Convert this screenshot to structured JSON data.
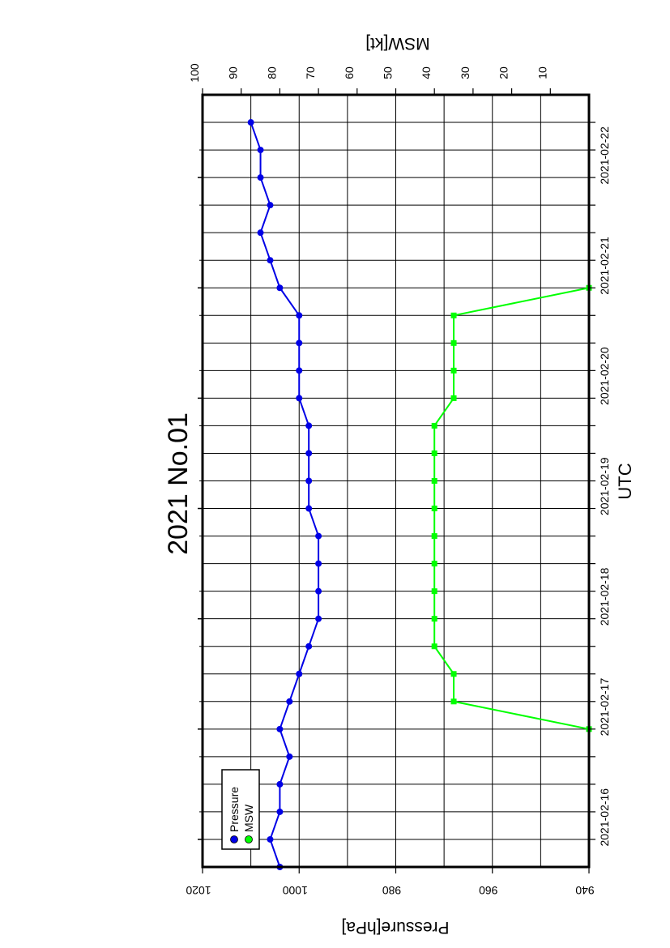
{
  "chart_data": {
    "type": "line",
    "title": "2021 No.01",
    "xlabel": "UTC",
    "ylabel_left": "Pressure[hPa]",
    "ylabel_right": "MSW[kt]",
    "x_start": "2021-02-15 18:00",
    "x_step_hours": 6,
    "x_ticks_labeled": [
      "2021-02-16",
      "2021-02-17",
      "2021-02-18",
      "2021-02-19",
      "2021-02-20",
      "2021-02-21",
      "2021-02-22"
    ],
    "ylim_left": [
      940,
      1020
    ],
    "yticks_left": [
      "940",
      "960",
      "980",
      "1000",
      "1020"
    ],
    "ylim_right": [
      0,
      100
    ],
    "yticks_right": [
      "10",
      "20",
      "30",
      "40",
      "50",
      "60",
      "70",
      "80",
      "90",
      "100"
    ],
    "grid": true,
    "orientation": "rotated 90° counter-clockwise",
    "legend": {
      "position": "top-left (as printed)",
      "entries": [
        "Pressure",
        "MSW"
      ]
    },
    "series": [
      {
        "name": "Pressure",
        "axis": "left",
        "color": "#0000e6",
        "times": [
          "2021-02-15 18:00",
          "2021-02-16 00:00",
          "2021-02-16 06:00",
          "2021-02-16 12:00",
          "2021-02-16 18:00",
          "2021-02-17 00:00",
          "2021-02-17 06:00",
          "2021-02-17 12:00",
          "2021-02-17 18:00",
          "2021-02-18 00:00",
          "2021-02-18 06:00",
          "2021-02-18 12:00",
          "2021-02-18 18:00",
          "2021-02-19 00:00",
          "2021-02-19 06:00",
          "2021-02-19 12:00",
          "2021-02-19 18:00",
          "2021-02-20 00:00",
          "2021-02-20 06:00",
          "2021-02-20 12:00",
          "2021-02-20 18:00",
          "2021-02-21 00:00",
          "2021-02-21 06:00",
          "2021-02-21 12:00",
          "2021-02-21 18:00",
          "2021-02-22 00:00",
          "2021-02-22 06:00",
          "2021-02-22 12:00"
        ],
        "values": [
          1004,
          1006,
          1004,
          1004,
          1002,
          1004,
          1002,
          1000,
          998,
          996,
          996,
          996,
          996,
          998,
          998,
          998,
          998,
          1000,
          1000,
          1000,
          1000,
          1004,
          1006,
          1008,
          1006,
          1008,
          1008,
          1010
        ]
      },
      {
        "name": "MSW",
        "axis": "right",
        "color": "#00ff00",
        "times": [
          "2021-02-17 00:00",
          "2021-02-17 06:00",
          "2021-02-17 12:00",
          "2021-02-17 18:00",
          "2021-02-18 00:00",
          "2021-02-18 06:00",
          "2021-02-18 12:00",
          "2021-02-18 18:00",
          "2021-02-19 00:00",
          "2021-02-19 06:00",
          "2021-02-19 12:00",
          "2021-02-19 18:00",
          "2021-02-20 00:00",
          "2021-02-20 06:00",
          "2021-02-20 12:00",
          "2021-02-20 18:00",
          "2021-02-21 00:00"
        ],
        "values": [
          0,
          35,
          35,
          40,
          40,
          40,
          40,
          40,
          40,
          40,
          40,
          40,
          35,
          35,
          35,
          35,
          0
        ]
      }
    ]
  }
}
